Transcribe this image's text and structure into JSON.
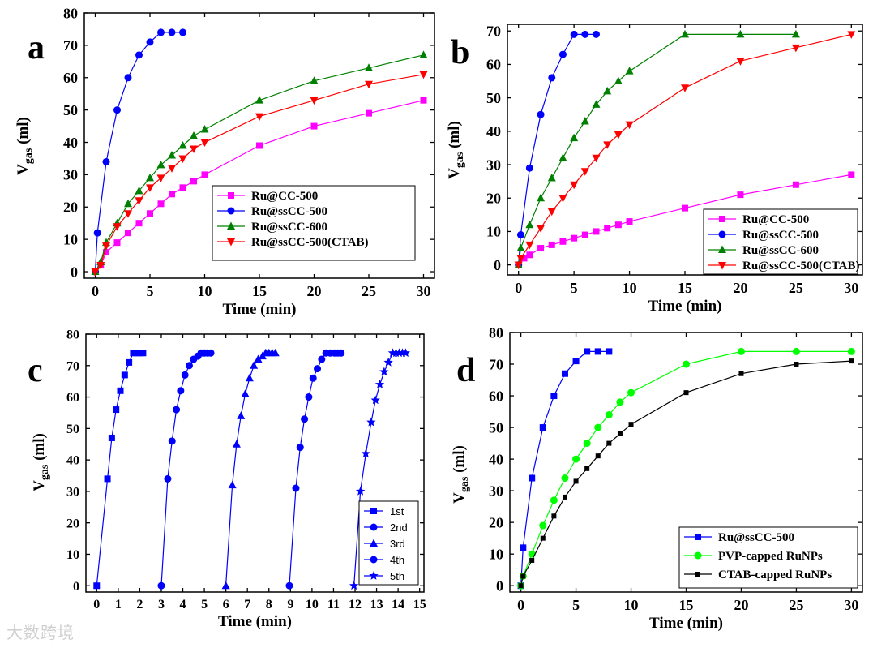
{
  "figure": {
    "watermark": "大数跨境"
  },
  "chart_data": [
    {
      "type": "line",
      "panel_label": "a",
      "title": "",
      "xlabel": "Time (min)",
      "ylabel_main": "V",
      "ylabel_sub": "gas",
      "ylabel_unit": " (ml)",
      "xlim": [
        -1,
        31
      ],
      "ylim": [
        -2,
        80
      ],
      "xticks": [
        0,
        5,
        10,
        15,
        20,
        25,
        30
      ],
      "yticks": [
        0,
        10,
        20,
        30,
        40,
        50,
        60,
        70,
        80
      ],
      "legend_position": "center-right",
      "series": [
        {
          "name": "Ru@CC-500",
          "color": "#ff00ff",
          "marker": "square",
          "x": [
            0,
            0.5,
            1,
            2,
            3,
            4,
            5,
            6,
            7,
            8,
            9,
            10,
            15,
            20,
            25,
            30
          ],
          "y": [
            0,
            2,
            6,
            9,
            12,
            15,
            18,
            21,
            24,
            26,
            28,
            30,
            39,
            45,
            49,
            53
          ]
        },
        {
          "name": "Ru@ssCC-500",
          "color": "#0000ff",
          "marker": "circle",
          "x": [
            0,
            0.2,
            1,
            2,
            3,
            4,
            5,
            6,
            7,
            8
          ],
          "y": [
            0,
            12,
            34,
            50,
            60,
            67,
            71,
            74,
            74,
            74
          ]
        },
        {
          "name": "Ru@ssCC-600",
          "color": "#008000",
          "marker": "triangle-up",
          "x": [
            0,
            0.5,
            1,
            2,
            3,
            4,
            5,
            6,
            7,
            8,
            9,
            10,
            15,
            20,
            25,
            30
          ],
          "y": [
            0,
            3,
            9,
            15,
            21,
            25,
            29,
            33,
            36,
            39,
            42,
            44,
            53,
            59,
            63,
            67
          ]
        },
        {
          "name": "Ru@ssCC-500(CTAB)",
          "color": "#ff0000",
          "marker": "triangle-down",
          "x": [
            0,
            0.5,
            1,
            2,
            3,
            4,
            5,
            6,
            7,
            8,
            9,
            10,
            15,
            20,
            25,
            30
          ],
          "y": [
            0,
            2,
            8,
            14,
            18,
            22,
            26,
            29,
            32,
            35,
            38,
            40,
            48,
            53,
            58,
            61
          ]
        }
      ]
    },
    {
      "type": "line",
      "panel_label": "b",
      "title": "",
      "xlabel": "Time (min)",
      "ylabel_main": "V",
      "ylabel_sub": "gas",
      "ylabel_unit": " (ml)",
      "xlim": [
        -1,
        31
      ],
      "ylim": [
        -3,
        72
      ],
      "xticks": [
        0,
        5,
        10,
        15,
        20,
        25,
        30
      ],
      "yticks": [
        0,
        10,
        20,
        30,
        40,
        50,
        60,
        70
      ],
      "legend_position": "bottom-right",
      "series": [
        {
          "name": "Ru@CC-500",
          "color": "#ff00ff",
          "marker": "square",
          "x": [
            0,
            0.5,
            1,
            2,
            3,
            4,
            5,
            6,
            7,
            8,
            9,
            10,
            15,
            20,
            25,
            30
          ],
          "y": [
            0,
            2,
            3,
            5,
            6,
            7,
            8,
            9,
            10,
            11,
            12,
            13,
            17,
            21,
            24,
            27
          ]
        },
        {
          "name": "Ru@ssCC-500",
          "color": "#0000ff",
          "marker": "circle",
          "x": [
            0,
            0.2,
            1,
            2,
            3,
            4,
            5,
            6,
            7
          ],
          "y": [
            0,
            9,
            29,
            45,
            56,
            63,
            69,
            69,
            69
          ]
        },
        {
          "name": "Ru@ssCC-600",
          "color": "#008000",
          "marker": "triangle-up",
          "x": [
            0,
            0.2,
            1,
            2,
            3,
            4,
            5,
            6,
            7,
            8,
            9,
            10,
            15,
            20,
            25
          ],
          "y": [
            0,
            5,
            12,
            20,
            26,
            32,
            38,
            43,
            48,
            52,
            55,
            58,
            69,
            69,
            69
          ]
        },
        {
          "name": "Ru@ssCC-500(CTAB)",
          "color": "#ff0000",
          "marker": "triangle-down",
          "x": [
            0,
            0.2,
            1,
            2,
            3,
            4,
            5,
            6,
            7,
            8,
            9,
            10,
            15,
            20,
            25,
            30
          ],
          "y": [
            0,
            2,
            6,
            11,
            16,
            20,
            24,
            28,
            32,
            36,
            39,
            42,
            53,
            61,
            65,
            69
          ]
        }
      ]
    },
    {
      "type": "line",
      "panel_label": "c",
      "title": "",
      "xlabel": "Time (min)",
      "ylabel_main": "V",
      "ylabel_sub": "gas",
      "ylabel_unit": " (ml)",
      "xlim": [
        -0.5,
        15.2
      ],
      "ylim": [
        -2,
        80
      ],
      "xticks": [
        0,
        1,
        2,
        3,
        4,
        5,
        6,
        7,
        8,
        9,
        10,
        11,
        12,
        13,
        14,
        15
      ],
      "yticks": [
        0,
        10,
        20,
        30,
        40,
        50,
        60,
        70,
        80
      ],
      "legend_position": "bottom-right",
      "series": [
        {
          "name": "1st",
          "color": "#0000ff",
          "marker": "square",
          "x": [
            0,
            0.5,
            0.7,
            0.9,
            1.1,
            1.3,
            1.5,
            1.7,
            1.85,
            2.0,
            2.15
          ],
          "y": [
            0,
            34,
            47,
            56,
            62,
            67,
            71,
            74,
            74,
            74,
            74
          ]
        },
        {
          "name": "2nd",
          "color": "#0000ff",
          "marker": "circle",
          "x": [
            3.0,
            3.3,
            3.5,
            3.7,
            3.9,
            4.1,
            4.3,
            4.5,
            4.7,
            4.85,
            5.0,
            5.15,
            5.3
          ],
          "y": [
            0,
            34,
            46,
            56,
            62,
            67,
            70,
            72,
            73,
            74,
            74,
            74,
            74
          ]
        },
        {
          "name": "3rd",
          "color": "#0000ff",
          "marker": "triangle-up",
          "x": [
            6.0,
            6.3,
            6.5,
            6.7,
            6.9,
            7.1,
            7.3,
            7.5,
            7.7,
            7.85,
            8.0,
            8.15,
            8.3
          ],
          "y": [
            0,
            32,
            45,
            54,
            61,
            66,
            70,
            72,
            73,
            74,
            74,
            74,
            74
          ]
        },
        {
          "name": "4th",
          "color": "#0000ff",
          "marker": "circle",
          "x": [
            8.95,
            9.25,
            9.45,
            9.65,
            9.85,
            10.05,
            10.25,
            10.45,
            10.65,
            10.85,
            11.05,
            11.2,
            11.35
          ],
          "y": [
            0,
            31,
            44,
            53,
            60,
            66,
            69,
            72,
            74,
            74,
            74,
            74,
            74
          ]
        },
        {
          "name": "5th",
          "color": "#0000ff",
          "marker": "star",
          "x": [
            11.95,
            12.25,
            12.5,
            12.75,
            12.95,
            13.15,
            13.35,
            13.55,
            13.75,
            13.9,
            14.05,
            14.2,
            14.35
          ],
          "y": [
            0,
            30,
            42,
            52,
            59,
            64,
            68,
            71,
            74,
            74,
            74,
            74,
            74
          ]
        }
      ]
    },
    {
      "type": "line",
      "panel_label": "d",
      "title": "",
      "xlabel": "Time (min)",
      "ylabel_main": "V",
      "ylabel_sub": "gas",
      "ylabel_unit": " (ml)",
      "xlim": [
        -1,
        31
      ],
      "ylim": [
        -2,
        80
      ],
      "xticks": [
        0,
        5,
        10,
        15,
        20,
        25,
        30
      ],
      "yticks": [
        0,
        10,
        20,
        30,
        40,
        50,
        60,
        70,
        80
      ],
      "legend_position": "bottom-right",
      "series": [
        {
          "name": "Ru@ssCC-500",
          "color": "#0000ff",
          "marker": "square",
          "x": [
            0,
            0.2,
            1,
            2,
            3,
            4,
            5,
            6,
            7,
            8
          ],
          "y": [
            0,
            12,
            34,
            50,
            60,
            67,
            71,
            74,
            74,
            74
          ]
        },
        {
          "name": "PVP-capped RuNPs",
          "color": "#00ff00",
          "marker": "circle",
          "x": [
            0,
            0.2,
            1,
            2,
            3,
            4,
            5,
            6,
            7,
            8,
            9,
            10,
            15,
            20,
            25,
            30
          ],
          "y": [
            0,
            3,
            10,
            19,
            27,
            34,
            40,
            45,
            50,
            54,
            58,
            61,
            70,
            74,
            74,
            74
          ]
        },
        {
          "name": "CTAB-capped RuNPs",
          "color": "#000000",
          "marker": "square-small",
          "x": [
            0,
            0.2,
            1,
            2,
            3,
            4,
            5,
            6,
            7,
            8,
            9,
            10,
            15,
            20,
            25,
            30
          ],
          "y": [
            0,
            3,
            8,
            15,
            22,
            28,
            33,
            37,
            41,
            45,
            48,
            51,
            61,
            67,
            70,
            71
          ]
        }
      ]
    }
  ]
}
